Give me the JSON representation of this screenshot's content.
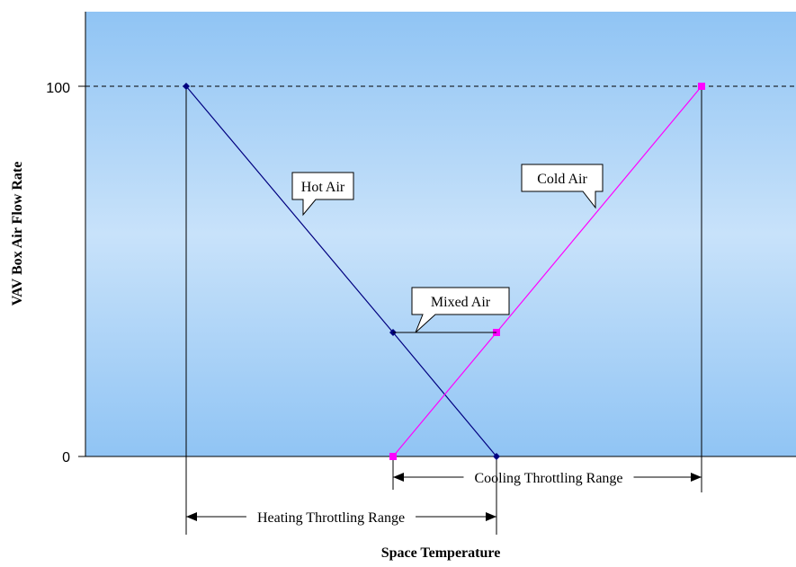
{
  "chart_data": {
    "type": "line",
    "xlabel": "Space Temperature",
    "ylabel": "VAV Box Air Flow Rate",
    "ylim": [
      0,
      100
    ],
    "yticks": [
      0,
      100
    ],
    "ytick_labels": [
      "0",
      "100"
    ],
    "gridline_at": 100,
    "x_axis_values": false,
    "series": [
      {
        "name": "Hot Air",
        "color": "#000080",
        "marker": "diamond",
        "points": [
          {
            "x": 1,
            "y": 100
          },
          {
            "x": 3,
            "y": 33.5
          },
          {
            "x": 4,
            "y": 0
          }
        ]
      },
      {
        "name": "Cold Air",
        "color": "#ff00ff",
        "marker": "square",
        "points": [
          {
            "x": 3,
            "y": 0
          },
          {
            "x": 4,
            "y": 33.5
          },
          {
            "x": 6,
            "y": 100
          }
        ]
      }
    ],
    "annotations": [
      {
        "text": "Hot Air"
      },
      {
        "text": "Cold Air"
      },
      {
        "text": "Mixed Air"
      }
    ],
    "ranges": [
      {
        "label": "Cooling Throttling Range",
        "from": 3,
        "to": 6
      },
      {
        "label": "Heating Throttling Range",
        "from": 1,
        "to": 4
      }
    ],
    "colors": {
      "plot_top": "#90c4f4",
      "plot_mid": "#c8e2fa",
      "plot_bottom": "#90c4f4"
    }
  }
}
